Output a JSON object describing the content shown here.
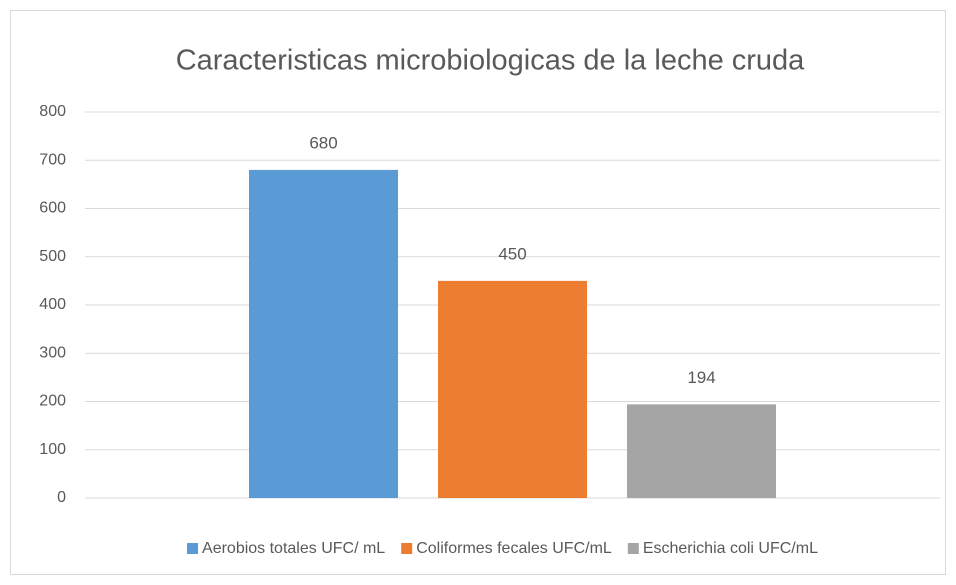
{
  "chart_data": {
    "type": "bar",
    "title": "Caracteristicas microbiologicas de la leche cruda",
    "categories": [
      null
    ],
    "series": [
      {
        "name": "Aerobios totales UFC/ mL",
        "color": "#5b9bd5",
        "values": [
          680
        ]
      },
      {
        "name": "Coliformes fecales UFC/mL",
        "color": "#ed7d31",
        "values": [
          450
        ]
      },
      {
        "name": "Escherichia coli UFC/mL",
        "color": "#a5a5a5",
        "values": [
          194
        ]
      }
    ],
    "ylim": [
      0,
      800
    ],
    "yticks": [
      0,
      100,
      200,
      300,
      400,
      500,
      600,
      700,
      800
    ],
    "grid": true,
    "legend": "bottom"
  }
}
